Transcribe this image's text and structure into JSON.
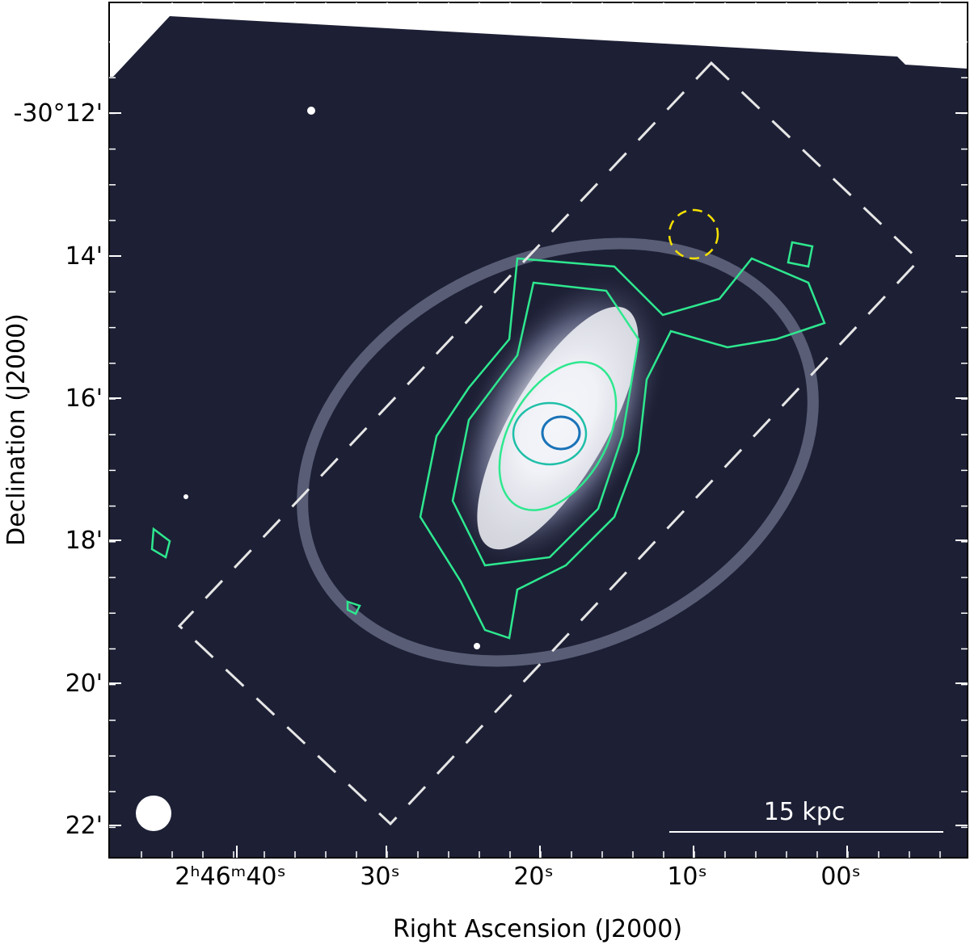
{
  "figure": {
    "y_axis_label": "Declination (J2000)",
    "x_axis_label": "Right Ascension (J2000)",
    "y_tick_labels": [
      "-30°12'",
      "14'",
      "16'",
      "18'",
      "20'",
      "22'"
    ],
    "x_tick_labels": [
      "2ʰ46ᵐ40ˢ",
      "30ˢ",
      "20ˢ",
      "10ˢ",
      "00ˢ"
    ],
    "scale_bar_label": "15 kpc"
  }
}
